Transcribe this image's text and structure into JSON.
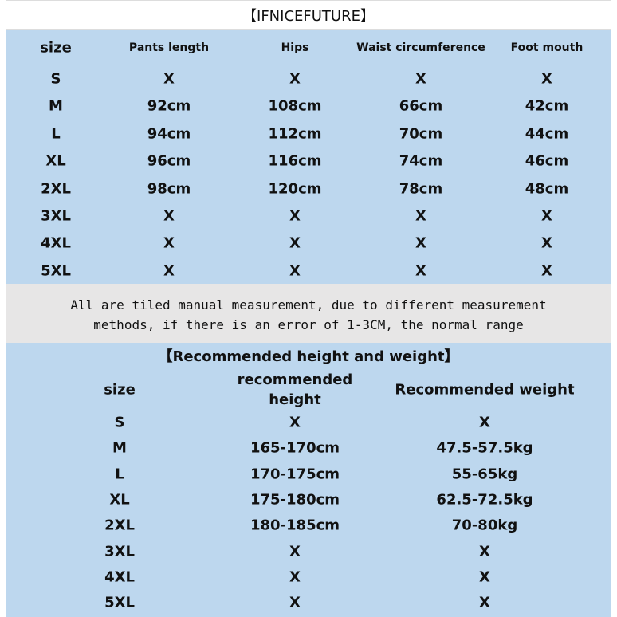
{
  "title": "【IFNICEFUTURE】",
  "size_table": {
    "headers": [
      "size",
      "Pants length",
      "Hips",
      "Waist circumference",
      "Foot mouth"
    ],
    "rows": [
      [
        "S",
        "X",
        "X",
        "X",
        "X"
      ],
      [
        "M",
        "92cm",
        "108cm",
        "66cm",
        "42cm"
      ],
      [
        "L",
        "94cm",
        "112cm",
        "70cm",
        "44cm"
      ],
      [
        "XL",
        "96cm",
        "116cm",
        "74cm",
        "46cm"
      ],
      [
        "2XL",
        "98cm",
        "120cm",
        "78cm",
        "48cm"
      ],
      [
        "3XL",
        "X",
        "X",
        "X",
        "X"
      ],
      [
        "4XL",
        "X",
        "X",
        "X",
        "X"
      ],
      [
        "5XL",
        "X",
        "X",
        "X",
        "X"
      ]
    ]
  },
  "notice": {
    "line1": "All are tiled manual measurement, due to different measurement",
    "line2": "methods, if there is an error of 1-3CM, the normal range"
  },
  "recommend_table": {
    "title": "【Recommended height and weight】",
    "headers": [
      "size",
      "recommended\nheight",
      "Recommended weight"
    ],
    "rows": [
      [
        "S",
        "X",
        "X"
      ],
      [
        "M",
        "165-170cm",
        "47.5-57.5kg"
      ],
      [
        "L",
        "170-175cm",
        "55-65kg"
      ],
      [
        "XL",
        "175-180cm",
        "62.5-72.5kg"
      ],
      [
        "2XL",
        "180-185cm",
        "70-80kg"
      ],
      [
        "3XL",
        "X",
        "X"
      ],
      [
        "4XL",
        "X",
        "X"
      ],
      [
        "5XL",
        "X",
        "X"
      ]
    ]
  },
  "colors": {
    "table_bg": "#BDD7EE",
    "notice_bg": "#E7E6E6"
  }
}
